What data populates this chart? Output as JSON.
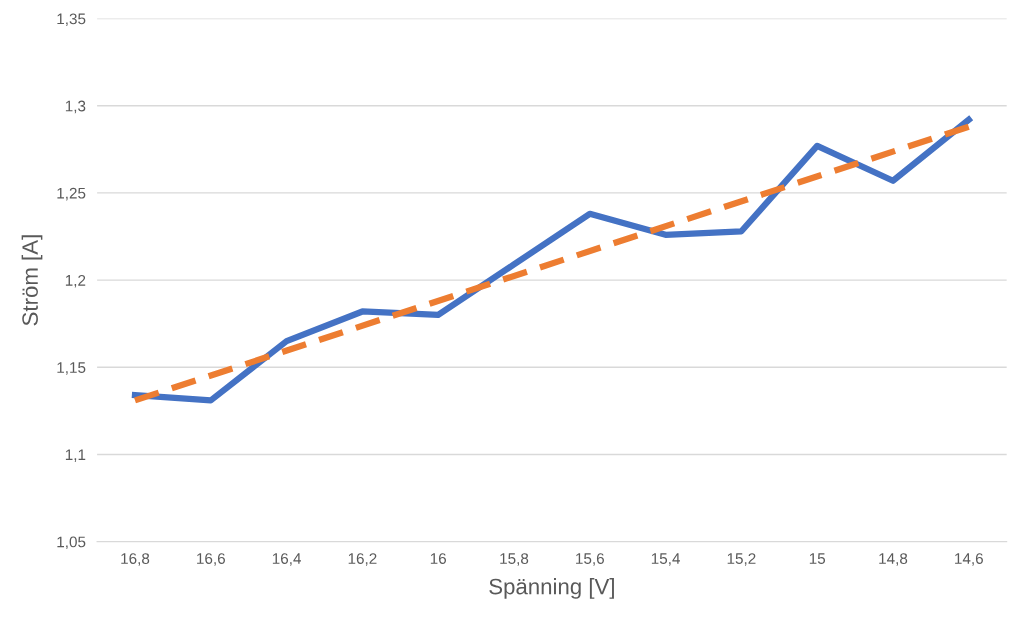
{
  "chart_data": {
    "type": "line",
    "xlabel": "Spänning [V]",
    "ylabel": "Ström [A]",
    "categories": [
      "16,8",
      "16,6",
      "16,4",
      "16,2",
      "16",
      "15,8",
      "15,6",
      "15,4",
      "15,2",
      "15",
      "14,8",
      "14,6"
    ],
    "series": [
      {
        "color": "#4472c4",
        "values": [
          1.134,
          1.131,
          1.165,
          1.182,
          1.18,
          1.209,
          1.238,
          1.226,
          1.228,
          1.277,
          1.257,
          1.292
        ]
      },
      {
        "color": "#ed7d31",
        "line_style": "dashed",
        "x": [
          "16,8",
          "14,6"
        ],
        "values": [
          1.131,
          1.288
        ]
      }
    ],
    "ylim": [
      1.05,
      1.35
    ],
    "yticks": [
      {
        "value": 1.05,
        "label": "1,05"
      },
      {
        "value": 1.1,
        "label": "1,1"
      },
      {
        "value": 1.15,
        "label": "1,15"
      },
      {
        "value": 1.2,
        "label": "1,2"
      },
      {
        "value": 1.25,
        "label": "1,25"
      },
      {
        "value": 1.3,
        "label": "1,3"
      },
      {
        "value": 1.35,
        "label": "1,35"
      }
    ],
    "grid": "y",
    "marker": "none",
    "line_style": "solid"
  }
}
